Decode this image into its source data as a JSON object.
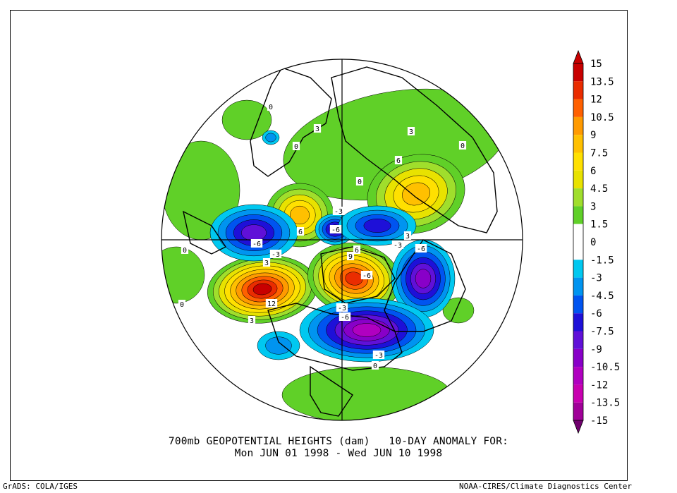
{
  "chart_data": {
    "type": "heatmap",
    "title_line1": "700mb GEOPOTENTIAL HEIGHTS (dam)   10-DAY ANOMALY FOR:",
    "title_line2": "Mon JUN 01 1998 - Wed JUN 10 1998",
    "projection": "polar stereographic, Northern Hemisphere",
    "colorbar": {
      "levels": [
        15,
        13.5,
        12,
        10.5,
        9,
        7.5,
        6,
        4.5,
        3,
        1.5,
        0,
        -1.5,
        -3,
        -4.5,
        -6,
        -7.5,
        -9,
        -10.5,
        -12,
        -13.5,
        -15
      ],
      "colors": [
        "#c80000",
        "#ea2c00",
        "#ff6000",
        "#ff9a00",
        "#ffc000",
        "#ffe000",
        "#e8e200",
        "#a0de2c",
        "#60d028",
        "#ffffff",
        "#ffffff",
        "#00c8f0",
        "#0094f0",
        "#0054f0",
        "#1e10d8",
        "#6010d8",
        "#8800c8",
        "#b000c0",
        "#c800b0",
        "#a00098",
        "#70006e"
      ]
    },
    "contour_labels": [
      "0",
      "0",
      "0",
      "0",
      "0",
      "0",
      "0",
      "3",
      "3",
      "3",
      "3",
      "3",
      "6",
      "6",
      "6",
      "9",
      "12",
      "-3",
      "-3",
      "-3",
      "-3",
      "-3",
      "-6",
      "-6",
      "-6",
      "-6",
      "-6"
    ]
  },
  "credit_left": "GrADS: COLA/IGES",
  "credit_right": "NOAA-CIRES/Climate Diagnostics Center"
}
